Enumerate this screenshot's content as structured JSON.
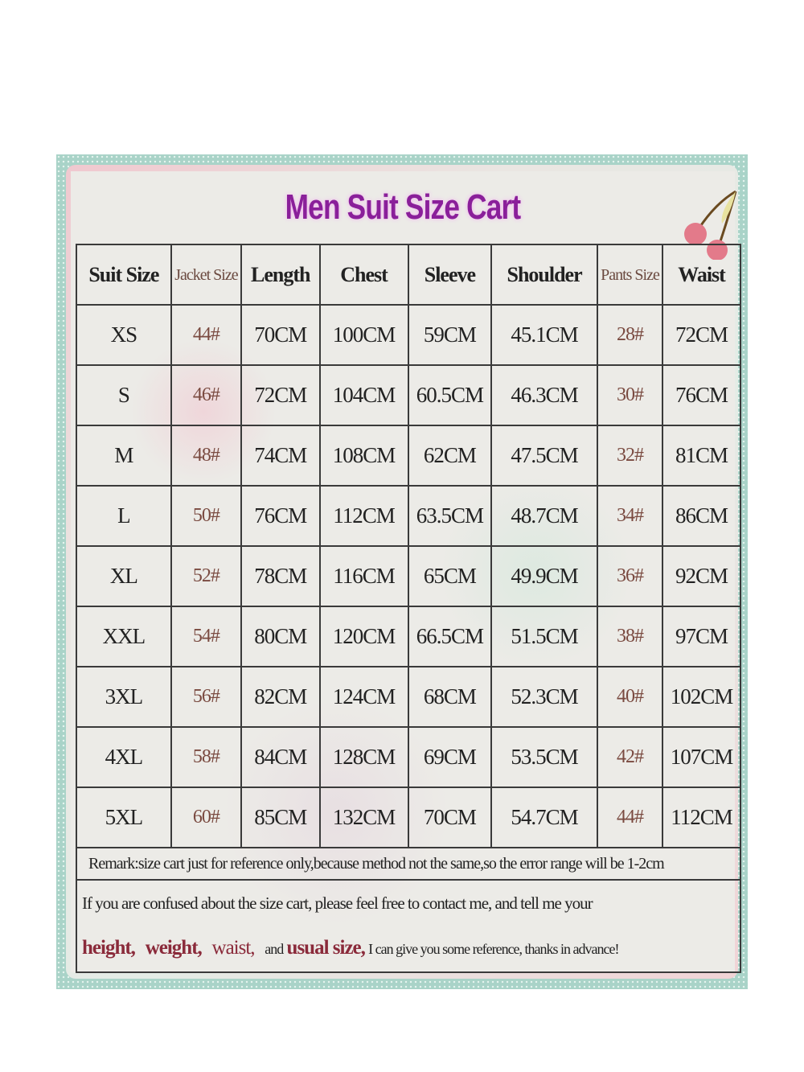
{
  "title": "Men Suit Size Cart",
  "headers": [
    "Suit Size",
    "Jacket Size",
    "Length",
    "Chest",
    "Sleeve",
    "Shoulder",
    "Pants Size",
    "Waist"
  ],
  "rows": [
    [
      "XS",
      "44#",
      "70CM",
      "100CM",
      "59CM",
      "45.1CM",
      "28#",
      "72CM"
    ],
    [
      "S",
      "46#",
      "72CM",
      "104CM",
      "60.5CM",
      "46.3CM",
      "30#",
      "76CM"
    ],
    [
      "M",
      "48#",
      "74CM",
      "108CM",
      "62CM",
      "47.5CM",
      "32#",
      "81CM"
    ],
    [
      "L",
      "50#",
      "76CM",
      "112CM",
      "63.5CM",
      "48.7CM",
      "34#",
      "86CM"
    ],
    [
      "XL",
      "52#",
      "78CM",
      "116CM",
      "65CM",
      "49.9CM",
      "36#",
      "92CM"
    ],
    [
      "XXL",
      "54#",
      "80CM",
      "120CM",
      "66.5CM",
      "51.5CM",
      "38#",
      "97CM"
    ],
    [
      "3XL",
      "56#",
      "82CM",
      "124CM",
      "68CM",
      "52.3CM",
      "40#",
      "102CM"
    ],
    [
      "4XL",
      "58#",
      "84CM",
      "128CM",
      "69CM",
      "53.5CM",
      "42#",
      "107CM"
    ],
    [
      "5XL",
      "60#",
      "85CM",
      "132CM",
      "70CM",
      "54.7CM",
      "44#",
      "112CM"
    ]
  ],
  "remark": "Remark:size cart just for reference only,because method not the same,so the error range will be 1-2cm",
  "note": {
    "line1": "If you are confused about the size cart, please feel free to contact me, and tell me your",
    "height": "height,",
    "weight": "weight,",
    "waist": "waist,",
    "and": "and",
    "usual": "usual size,",
    "rest": "I can give you some reference, thanks in advance!"
  },
  "colors": {
    "title": "#8a1f9a",
    "border": "#a9d3c8",
    "highlight": "#8a2a3a"
  }
}
